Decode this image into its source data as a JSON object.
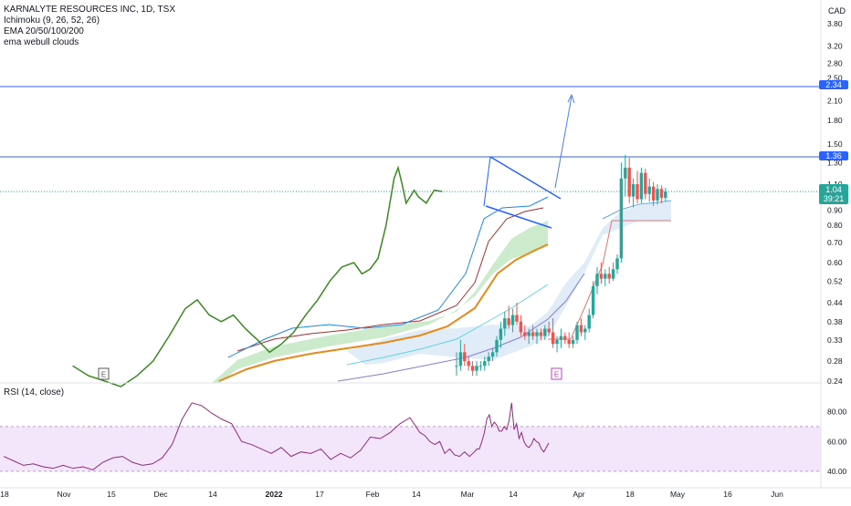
{
  "legend": {
    "symbol": "KARNALYTE RESOURCES INC, 1D, TSX",
    "ichimoku": "Ichimoku (9, 26, 52, 26)",
    "ema": "EMA 20/50/100/200",
    "clouds": "ema webull clouds"
  },
  "rsi_legend": "RSI (14, close)",
  "currency": "CAD",
  "price_tags": {
    "upper": "2.34",
    "level": "1.36",
    "last": "1.04",
    "countdown": "39:21"
  },
  "earnings_marker": "E",
  "colors": {
    "up": "#26a69a",
    "down": "#ef5350",
    "lagging": "#3a8a1f",
    "hline": "#2962ff",
    "rsi": "#8e2a7d",
    "rsi_band": "#f3e6fb",
    "cloud_green": "#c6e8c6",
    "cloud_blue": "#dbeaf7",
    "ema20": "#2a8a3a",
    "ema50": "#e68a1a",
    "ema100": "#5fd3e6",
    "ema200": "#8a7ad6"
  },
  "chart_data": [
    {
      "type": "candlestick",
      "ylog": true,
      "ylim": [
        0.24,
        4.2
      ],
      "yticks": [
        "3.80",
        "3.20",
        "2.80",
        "2.50",
        "2.10",
        "1.80",
        "1.50",
        "1.30",
        "1.10",
        "0.90",
        "0.80",
        "0.70",
        "0.60",
        "0.52",
        "0.44",
        "0.38",
        "0.33",
        "0.28",
        "0.24"
      ],
      "hlines": [
        2.34,
        1.36,
        1.04
      ],
      "candles": [
        {
          "d": 0,
          "o": 0.27,
          "h": 0.3,
          "l": 0.25,
          "c": 0.27
        },
        {
          "d": 1,
          "o": 0.27,
          "h": 0.33,
          "l": 0.26,
          "c": 0.3
        },
        {
          "d": 2,
          "o": 0.3,
          "h": 0.32,
          "l": 0.27,
          "c": 0.28
        },
        {
          "d": 3,
          "o": 0.28,
          "h": 0.29,
          "l": 0.26,
          "c": 0.27
        },
        {
          "d": 4,
          "o": 0.27,
          "h": 0.28,
          "l": 0.25,
          "c": 0.26
        },
        {
          "d": 5,
          "o": 0.26,
          "h": 0.28,
          "l": 0.25,
          "c": 0.27
        },
        {
          "d": 6,
          "o": 0.27,
          "h": 0.28,
          "l": 0.26,
          "c": 0.27
        },
        {
          "d": 7,
          "o": 0.27,
          "h": 0.29,
          "l": 0.26,
          "c": 0.28
        },
        {
          "d": 8,
          "o": 0.28,
          "h": 0.3,
          "l": 0.27,
          "c": 0.29
        },
        {
          "d": 9,
          "o": 0.29,
          "h": 0.31,
          "l": 0.28,
          "c": 0.3
        },
        {
          "d": 10,
          "o": 0.3,
          "h": 0.34,
          "l": 0.29,
          "c": 0.33
        },
        {
          "d": 11,
          "o": 0.33,
          "h": 0.38,
          "l": 0.31,
          "c": 0.36
        },
        {
          "d": 12,
          "o": 0.36,
          "h": 0.41,
          "l": 0.34,
          "c": 0.39
        },
        {
          "d": 13,
          "o": 0.39,
          "h": 0.43,
          "l": 0.36,
          "c": 0.37
        },
        {
          "d": 14,
          "o": 0.37,
          "h": 0.42,
          "l": 0.35,
          "c": 0.4
        },
        {
          "d": 15,
          "o": 0.4,
          "h": 0.44,
          "l": 0.37,
          "c": 0.38
        },
        {
          "d": 16,
          "o": 0.38,
          "h": 0.4,
          "l": 0.34,
          "c": 0.35
        },
        {
          "d": 17,
          "o": 0.35,
          "h": 0.37,
          "l": 0.33,
          "c": 0.34
        },
        {
          "d": 18,
          "o": 0.34,
          "h": 0.36,
          "l": 0.32,
          "c": 0.35
        },
        {
          "d": 19,
          "o": 0.35,
          "h": 0.37,
          "l": 0.33,
          "c": 0.34
        },
        {
          "d": 20,
          "o": 0.34,
          "h": 0.36,
          "l": 0.32,
          "c": 0.35
        },
        {
          "d": 21,
          "o": 0.35,
          "h": 0.36,
          "l": 0.33,
          "c": 0.34
        },
        {
          "d": 22,
          "o": 0.34,
          "h": 0.37,
          "l": 0.33,
          "c": 0.36
        },
        {
          "d": 23,
          "o": 0.36,
          "h": 0.38,
          "l": 0.34,
          "c": 0.35
        },
        {
          "d": 24,
          "o": 0.35,
          "h": 0.39,
          "l": 0.31,
          "c": 0.32
        },
        {
          "d": 25,
          "o": 0.32,
          "h": 0.34,
          "l": 0.3,
          "c": 0.33
        },
        {
          "d": 26,
          "o": 0.33,
          "h": 0.36,
          "l": 0.31,
          "c": 0.34
        },
        {
          "d": 27,
          "o": 0.34,
          "h": 0.35,
          "l": 0.32,
          "c": 0.33
        },
        {
          "d": 28,
          "o": 0.33,
          "h": 0.35,
          "l": 0.31,
          "c": 0.32
        },
        {
          "d": 29,
          "o": 0.32,
          "h": 0.34,
          "l": 0.31,
          "c": 0.33
        },
        {
          "d": 30,
          "o": 0.33,
          "h": 0.38,
          "l": 0.32,
          "c": 0.37
        },
        {
          "d": 31,
          "o": 0.37,
          "h": 0.39,
          "l": 0.34,
          "c": 0.35
        },
        {
          "d": 32,
          "o": 0.35,
          "h": 0.37,
          "l": 0.33,
          "c": 0.36
        },
        {
          "d": 33,
          "o": 0.36,
          "h": 0.42,
          "l": 0.35,
          "c": 0.4
        },
        {
          "d": 34,
          "o": 0.4,
          "h": 0.52,
          "l": 0.39,
          "c": 0.5
        },
        {
          "d": 35,
          "o": 0.5,
          "h": 0.58,
          "l": 0.47,
          "c": 0.55
        },
        {
          "d": 36,
          "o": 0.55,
          "h": 0.6,
          "l": 0.51,
          "c": 0.53
        },
        {
          "d": 37,
          "o": 0.53,
          "h": 0.57,
          "l": 0.5,
          "c": 0.55
        },
        {
          "d": 38,
          "o": 0.55,
          "h": 0.58,
          "l": 0.51,
          "c": 0.53
        },
        {
          "d": 39,
          "o": 0.53,
          "h": 0.6,
          "l": 0.52,
          "c": 0.57
        },
        {
          "d": 40,
          "o": 0.57,
          "h": 0.64,
          "l": 0.55,
          "c": 0.62
        },
        {
          "d": 41,
          "o": 0.62,
          "h": 1.3,
          "l": 0.6,
          "c": 1.15
        },
        {
          "d": 42,
          "o": 1.15,
          "h": 1.38,
          "l": 1.0,
          "c": 1.25
        },
        {
          "d": 43,
          "o": 1.25,
          "h": 1.35,
          "l": 0.95,
          "c": 1.0
        },
        {
          "d": 44,
          "o": 1.0,
          "h": 1.15,
          "l": 0.92,
          "c": 1.1
        },
        {
          "d": 45,
          "o": 1.1,
          "h": 1.22,
          "l": 0.95,
          "c": 0.98
        },
        {
          "d": 46,
          "o": 0.98,
          "h": 1.25,
          "l": 0.95,
          "c": 1.2
        },
        {
          "d": 47,
          "o": 1.2,
          "h": 1.24,
          "l": 0.98,
          "c": 1.02
        },
        {
          "d": 48,
          "o": 1.02,
          "h": 1.15,
          "l": 0.96,
          "c": 1.08
        },
        {
          "d": 49,
          "o": 1.08,
          "h": 1.12,
          "l": 0.93,
          "c": 0.97
        },
        {
          "d": 50,
          "o": 0.97,
          "h": 1.1,
          "l": 0.94,
          "c": 1.06
        },
        {
          "d": 51,
          "o": 1.06,
          "h": 1.09,
          "l": 0.95,
          "c": 0.99
        },
        {
          "d": 52,
          "o": 0.99,
          "h": 1.07,
          "l": 0.96,
          "c": 1.04
        }
      ],
      "lagging_span": [
        [
          -66,
          0.27
        ],
        [
          -62,
          0.25
        ],
        [
          -58,
          0.24
        ],
        [
          -54,
          0.23
        ],
        [
          -50,
          0.25
        ],
        [
          -46,
          0.28
        ],
        [
          -42,
          0.34
        ],
        [
          -38,
          0.42
        ],
        [
          -35,
          0.45
        ],
        [
          -32,
          0.4
        ],
        [
          -29,
          0.38
        ],
        [
          -26,
          0.4
        ],
        [
          -23,
          0.36
        ],
        [
          -20,
          0.33
        ],
        [
          -17,
          0.3
        ],
        [
          -14,
          0.32
        ],
        [
          -11,
          0.35
        ],
        [
          -8,
          0.4
        ],
        [
          -5,
          0.45
        ],
        [
          -2,
          0.52
        ],
        [
          1,
          0.58
        ],
        [
          4,
          0.6
        ],
        [
          6,
          0.55
        ],
        [
          8,
          0.57
        ],
        [
          10,
          0.62
        ],
        [
          12,
          0.8
        ],
        [
          14,
          1.15
        ],
        [
          15,
          1.25
        ],
        [
          16,
          1.1
        ],
        [
          17,
          0.95
        ],
        [
          19,
          1.05
        ],
        [
          20,
          1.0
        ],
        [
          22,
          0.95
        ],
        [
          23,
          1.0
        ],
        [
          24,
          1.05
        ],
        [
          26,
          1.04
        ]
      ],
      "rsi": {
        "ylim": [
          32,
          92
        ],
        "yticks": [
          "80.00",
          "60.00",
          "40.00"
        ],
        "band": [
          40,
          70
        ],
        "values": [
          [
            -150,
            50
          ],
          [
            -146,
            47
          ],
          [
            -142,
            44
          ],
          [
            -138,
            45
          ],
          [
            -134,
            43
          ],
          [
            -130,
            42
          ],
          [
            -126,
            44
          ],
          [
            -122,
            42
          ],
          [
            -118,
            43
          ],
          [
            -114,
            41
          ],
          [
            -110,
            46
          ],
          [
            -106,
            49
          ],
          [
            -102,
            50
          ],
          [
            -98,
            46
          ],
          [
            -94,
            44
          ],
          [
            -90,
            45
          ],
          [
            -86,
            49
          ],
          [
            -82,
            58
          ],
          [
            -78,
            75
          ],
          [
            -74,
            86
          ],
          [
            -70,
            84
          ],
          [
            -66,
            79
          ],
          [
            -62,
            75
          ],
          [
            -58,
            72
          ],
          [
            -54,
            60
          ],
          [
            -50,
            58
          ],
          [
            -46,
            55
          ],
          [
            -42,
            52
          ],
          [
            -38,
            56
          ],
          [
            -34,
            50
          ],
          [
            -30,
            53
          ],
          [
            -26,
            52
          ],
          [
            -22,
            55
          ],
          [
            -18,
            48
          ],
          [
            -14,
            52
          ],
          [
            -10,
            49
          ],
          [
            -6,
            54
          ],
          [
            -2,
            63
          ],
          [
            2,
            62
          ],
          [
            6,
            66
          ],
          [
            10,
            72
          ],
          [
            14,
            76
          ],
          [
            16,
            71
          ],
          [
            18,
            66
          ],
          [
            20,
            64
          ],
          [
            22,
            60
          ],
          [
            24,
            58
          ],
          [
            26,
            60
          ],
          [
            28,
            52
          ],
          [
            30,
            55
          ],
          [
            32,
            51
          ],
          [
            34,
            50
          ],
          [
            36,
            53
          ],
          [
            38,
            50
          ],
          [
            40,
            53
          ],
          [
            41,
            55
          ],
          [
            42,
            55
          ],
          [
            43,
            60
          ],
          [
            44,
            66
          ],
          [
            45,
            75
          ],
          [
            46,
            78
          ],
          [
            47,
            70
          ],
          [
            48,
            73
          ],
          [
            49,
            71
          ],
          [
            50,
            67
          ],
          [
            51,
            67
          ],
          [
            52,
            70
          ],
          [
            53,
            68
          ],
          [
            54,
            74
          ],
          [
            55,
            86
          ],
          [
            56,
            68
          ],
          [
            57,
            72
          ],
          [
            58,
            62
          ],
          [
            59,
            66
          ],
          [
            60,
            60
          ],
          [
            61,
            57
          ],
          [
            62,
            56
          ],
          [
            63,
            58
          ],
          [
            64,
            62
          ],
          [
            65,
            60
          ],
          [
            66,
            59
          ],
          [
            67,
            55
          ],
          [
            68,
            53
          ],
          [
            69,
            56
          ],
          [
            70,
            59
          ]
        ]
      },
      "x_ticks": [
        "18",
        "Nov",
        "15",
        "Dec",
        "14",
        "2022",
        "17",
        "Feb",
        "14",
        "Mar",
        "14",
        "Apr",
        "18",
        "May",
        "16",
        "Jun"
      ]
    }
  ]
}
